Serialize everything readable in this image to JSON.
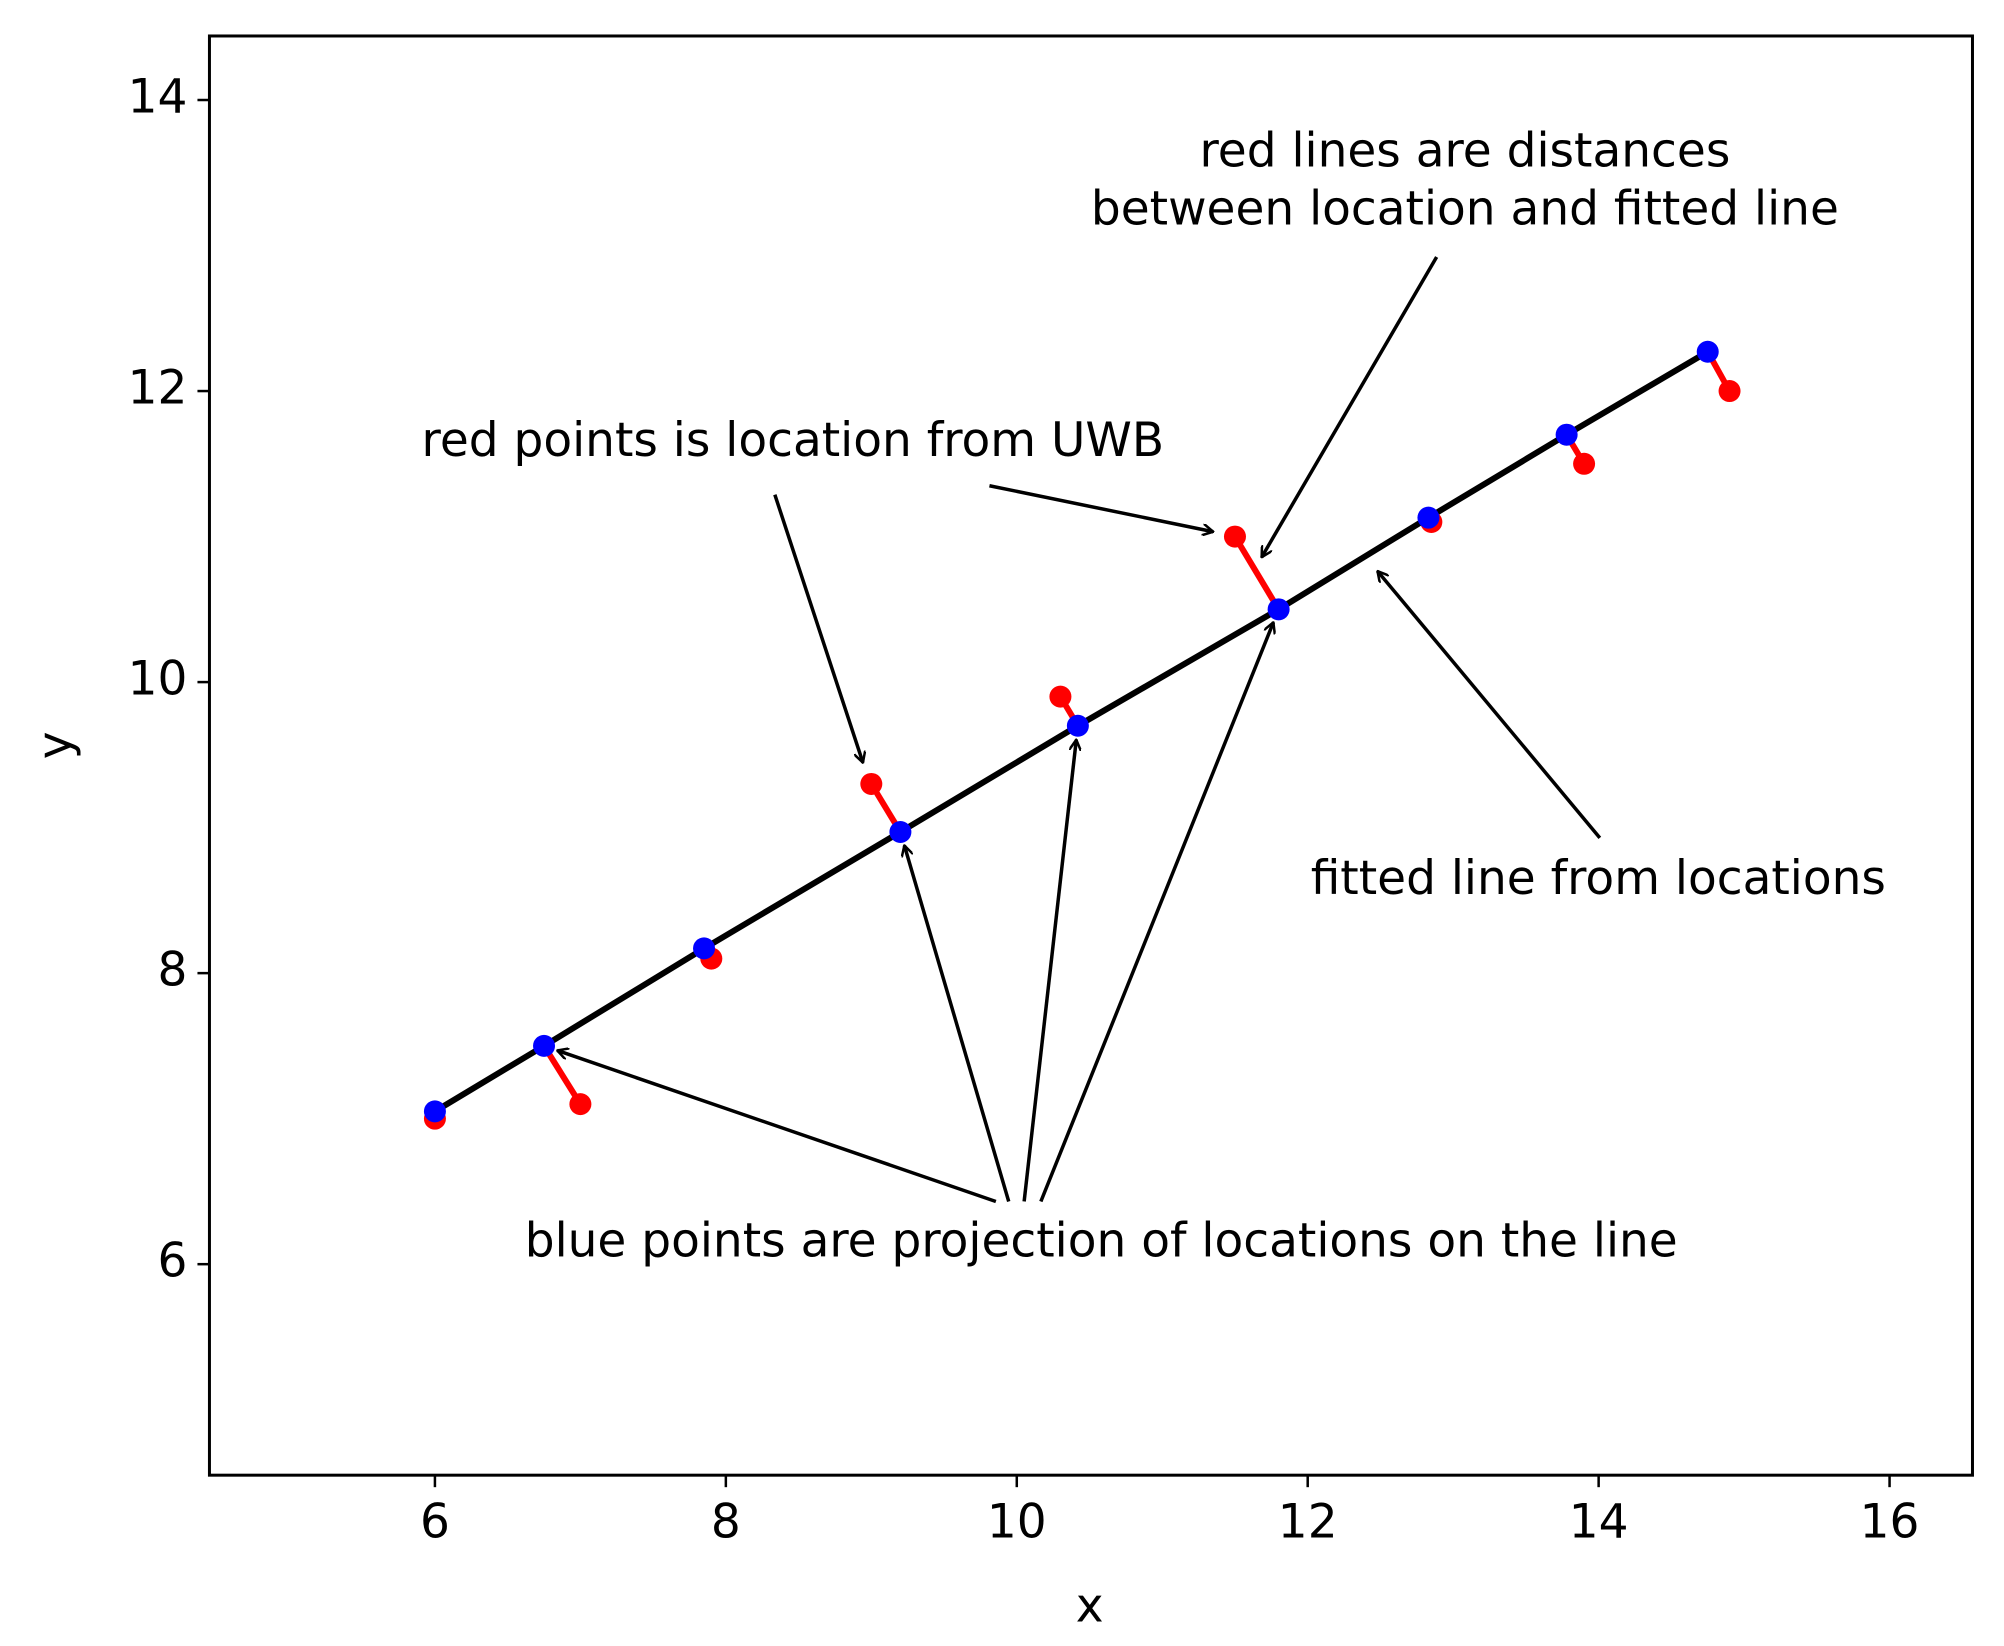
{
  "chart_data": {
    "type": "scatter",
    "xlabel": "x",
    "ylabel": "y",
    "xlim": [
      4.45,
      16.57
    ],
    "ylim": [
      4.55,
      14.44
    ],
    "xticks": [
      6,
      8,
      10,
      12,
      14,
      16
    ],
    "yticks": [
      6,
      8,
      10,
      12,
      14
    ],
    "series": [
      {
        "color": "#ff0000",
        "x": [
          6,
          7,
          7.9,
          9,
          10.3,
          11.5,
          12.85,
          13.9,
          14.9
        ],
        "values": [
          7.0,
          7.1,
          8.1,
          9.3,
          9.9,
          11.0,
          11.1,
          11.5,
          12.0
        ]
      },
      {
        "color": "#0000ff",
        "x": [
          6,
          6.75,
          7.85,
          9.2,
          10.42,
          11.8,
          12.83,
          13.78,
          14.75
        ],
        "values": [
          7.05,
          7.5,
          8.17,
          8.97,
          9.7,
          10.5,
          11.13,
          11.7,
          12.27
        ]
      }
    ],
    "fit_color": "#000000",
    "distance_color": "#ff0000",
    "annotations": [
      {
        "text": [
          "red lines are distances",
          "between location and fitted line"
        ]
      },
      {
        "text": [
          "red points is location from UWB"
        ]
      },
      {
        "text": [
          "fitted line from locations"
        ]
      },
      {
        "text": [
          "blue points are projection of locations on the line"
        ]
      }
    ]
  }
}
